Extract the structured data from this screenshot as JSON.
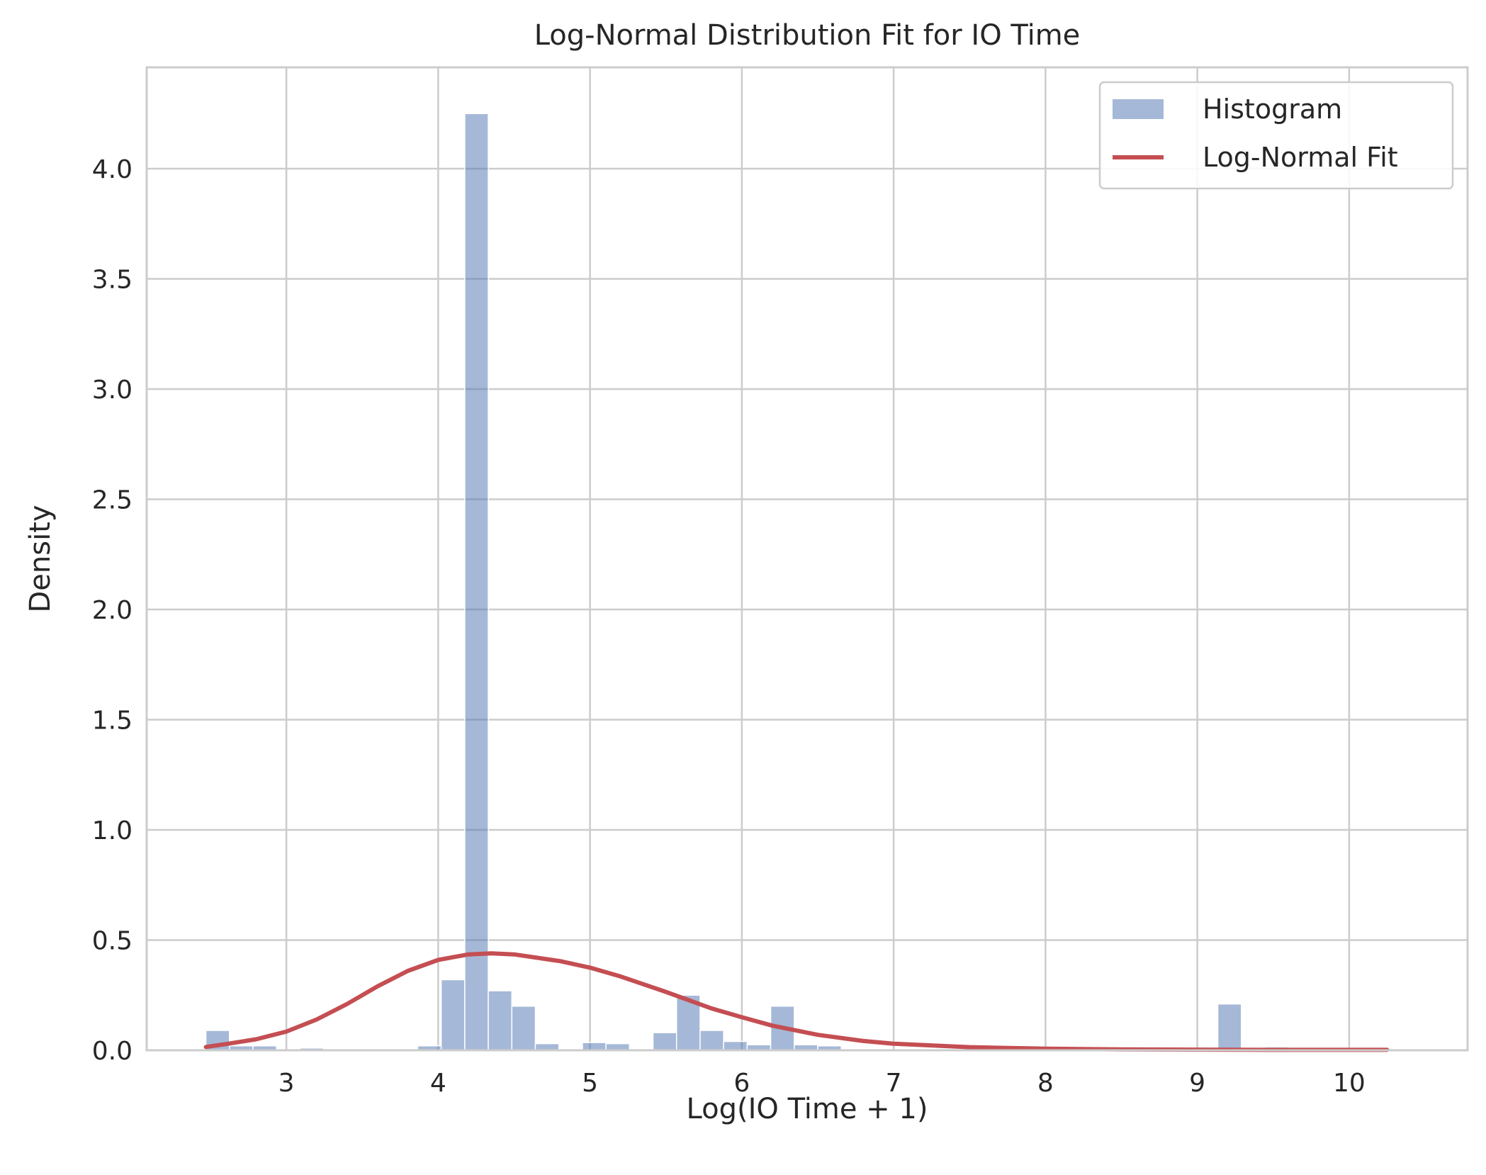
{
  "chart_data": {
    "type": "bar",
    "title": "Log-Normal Distribution Fit for IO Time",
    "xlabel": "Log(IO Time + 1)",
    "ylabel": "Density",
    "xlim": [
      2.08,
      10.78
    ],
    "ylim": [
      0.0,
      4.46
    ],
    "xticks": [
      3,
      4,
      5,
      6,
      7,
      8,
      9,
      10
    ],
    "xtick_labels": [
      "3",
      "4",
      "5",
      "6",
      "7",
      "8",
      "9",
      "10"
    ],
    "yticks": [
      0.0,
      0.5,
      1.0,
      1.5,
      2.0,
      2.5,
      3.0,
      3.5,
      4.0
    ],
    "ytick_labels": [
      "0.0",
      "0.5",
      "1.0",
      "1.5",
      "2.0",
      "2.5",
      "3.0",
      "3.5",
      "4.0"
    ],
    "grid": true,
    "legend": {
      "placement": "top-right",
      "entries": [
        {
          "label": "Histogram",
          "kind": "patch",
          "color": "#4c72b0"
        },
        {
          "label": "Log-Normal Fit",
          "kind": "line",
          "color": "#c44e52"
        }
      ]
    },
    "colors": {
      "histogram": "#4c72b0",
      "fit_line": "#c44e52",
      "grid": "#cccccc",
      "spine": "#cccccc",
      "text": "#262626"
    },
    "histogram": {
      "name": "Histogram",
      "bin_start": 2.47,
      "bin_width": 0.155,
      "values": [
        0.09,
        0.02,
        0.02,
        0.0,
        0.01,
        0.005,
        0.005,
        0.0,
        0.0,
        0.02,
        0.32,
        4.25,
        0.27,
        0.2,
        0.03,
        0.0,
        0.035,
        0.03,
        0.0,
        0.08,
        0.25,
        0.09,
        0.04,
        0.025,
        0.2,
        0.025,
        0.02,
        0.005,
        0.0,
        0.0,
        0.0,
        0.0,
        0.0,
        0.0,
        0.0,
        0.0,
        0.0,
        0.0,
        0.0,
        0.0,
        0.0,
        0.0,
        0.0,
        0.21,
        0.0,
        0.015
      ]
    },
    "fit": {
      "name": "Log-Normal Fit",
      "x": [
        2.47,
        2.6,
        2.8,
        3.0,
        3.2,
        3.4,
        3.6,
        3.8,
        4.0,
        4.2,
        4.35,
        4.5,
        4.8,
        5.0,
        5.2,
        5.5,
        5.8,
        6.0,
        6.2,
        6.5,
        6.8,
        7.0,
        7.5,
        8.0,
        8.5,
        9.0,
        9.5,
        10.0,
        10.25
      ],
      "y": [
        0.015,
        0.028,
        0.05,
        0.085,
        0.14,
        0.21,
        0.29,
        0.36,
        0.41,
        0.435,
        0.44,
        0.435,
        0.405,
        0.375,
        0.335,
        0.265,
        0.19,
        0.15,
        0.112,
        0.07,
        0.042,
        0.03,
        0.014,
        0.007,
        0.004,
        0.003,
        0.002,
        0.002,
        0.002
      ]
    }
  }
}
